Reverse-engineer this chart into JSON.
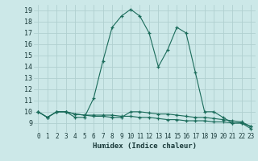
{
  "xlabel": "Humidex (Indice chaleur)",
  "background_color": "#cce8e8",
  "grid_color": "#b0d0d0",
  "line_color": "#1a6b5a",
  "xlim": [
    -0.5,
    23.5
  ],
  "ylim": [
    8.2,
    19.5
  ],
  "yticks": [
    9,
    10,
    11,
    12,
    13,
    14,
    15,
    16,
    17,
    18,
    19
  ],
  "xticks": [
    0,
    1,
    2,
    3,
    4,
    5,
    6,
    7,
    8,
    9,
    10,
    11,
    12,
    13,
    14,
    15,
    16,
    17,
    18,
    19,
    20,
    21,
    22,
    23
  ],
  "line1_x": [
    0,
    1,
    2,
    3,
    4,
    5,
    6,
    7,
    8,
    9,
    10,
    11,
    12,
    13,
    14,
    15,
    16,
    17,
    18,
    19,
    20,
    21,
    22,
    23
  ],
  "line1_y": [
    10.0,
    9.5,
    10.0,
    10.0,
    9.5,
    9.5,
    11.2,
    14.5,
    17.5,
    18.5,
    19.1,
    18.5,
    17.0,
    14.0,
    15.5,
    17.5,
    17.0,
    13.5,
    10.0,
    10.0,
    9.5,
    9.0,
    9.0,
    8.5
  ],
  "line2_x": [
    0,
    1,
    2,
    3,
    4,
    5,
    6,
    7,
    8,
    9,
    10,
    11,
    12,
    13,
    14,
    15,
    16,
    17,
    18,
    19,
    20,
    21,
    22,
    23
  ],
  "line2_y": [
    10.0,
    9.5,
    10.0,
    10.0,
    9.8,
    9.7,
    9.6,
    9.6,
    9.5,
    9.5,
    10.0,
    10.0,
    9.9,
    9.8,
    9.8,
    9.7,
    9.6,
    9.5,
    9.5,
    9.4,
    9.3,
    9.2,
    9.1,
    8.7
  ],
  "line3_x": [
    0,
    1,
    2,
    3,
    4,
    5,
    6,
    7,
    8,
    9,
    10,
    11,
    12,
    13,
    14,
    15,
    16,
    17,
    18,
    19,
    20,
    21,
    22,
    23
  ],
  "line3_y": [
    10.0,
    9.5,
    10.0,
    10.0,
    9.8,
    9.7,
    9.7,
    9.7,
    9.7,
    9.6,
    9.6,
    9.5,
    9.5,
    9.4,
    9.3,
    9.3,
    9.2,
    9.2,
    9.2,
    9.1,
    9.1,
    9.0,
    9.0,
    8.7
  ]
}
